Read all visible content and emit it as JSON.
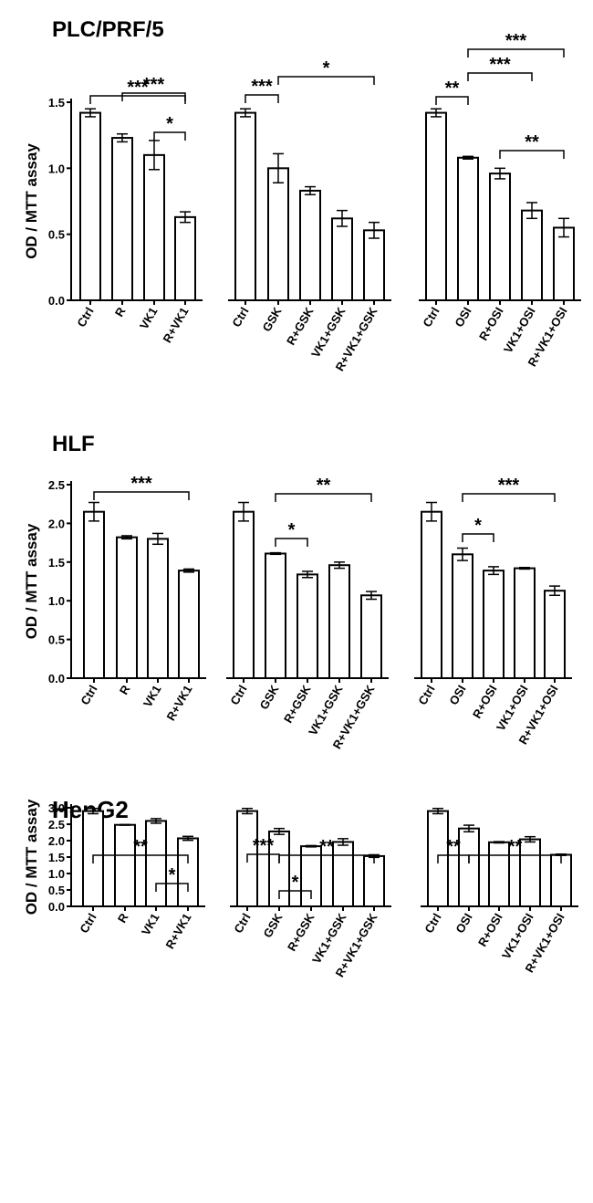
{
  "chart_data": [
    {
      "type": "bar",
      "title": "PLC/PRF/5",
      "ylabel": "OD / MTT assay",
      "ylim": [
        0,
        1.5
      ],
      "yticks": [
        "0.0",
        "0.5",
        "1.0",
        "1.5"
      ],
      "groups": [
        {
          "categories": [
            "Ctrl",
            "R",
            "VK1",
            "R+VK1"
          ],
          "values": [
            1.42,
            1.23,
            1.1,
            0.63
          ],
          "errors": [
            0.03,
            0.03,
            0.11,
            0.04
          ]
        },
        {
          "categories": [
            "Ctrl",
            "GSK",
            "R+GSK",
            "VK1+GSK",
            "R+VK1+GSK"
          ],
          "values": [
            1.42,
            1.0,
            0.83,
            0.62,
            0.53
          ],
          "errors": [
            0.03,
            0.11,
            0.03,
            0.06,
            0.06
          ]
        },
        {
          "categories": [
            "Ctrl",
            "OSI",
            "R+OSI",
            "VK1+OSI",
            "R+VK1+OSI"
          ],
          "values": [
            1.42,
            1.08,
            0.96,
            0.68,
            0.55
          ],
          "errors": [
            0.03,
            0.01,
            0.04,
            0.06,
            0.07
          ]
        }
      ],
      "significance": [
        {
          "from": [
            0,
            0
          ],
          "to": [
            0,
            3
          ],
          "label": "***"
        },
        {
          "from": [
            0,
            1
          ],
          "to": [
            0,
            3
          ],
          "label": "***"
        },
        {
          "from": [
            0,
            2
          ],
          "to": [
            0,
            3
          ],
          "label": "*"
        },
        {
          "from": [
            1,
            0
          ],
          "to": [
            1,
            1
          ],
          "label": "***"
        },
        {
          "from": [
            1,
            1
          ],
          "to": [
            1,
            4
          ],
          "label": "*"
        },
        {
          "from": [
            2,
            1
          ],
          "to": [
            2,
            4
          ],
          "label": "***"
        },
        {
          "from": [
            2,
            0
          ],
          "to": [
            2,
            1
          ],
          "label": "**"
        },
        {
          "from": [
            2,
            1
          ],
          "to": [
            2,
            3
          ],
          "label": "***"
        },
        {
          "from": [
            2,
            2
          ],
          "to": [
            2,
            4
          ],
          "label": "**"
        }
      ]
    },
    {
      "type": "bar",
      "title": "HLF",
      "ylabel": "OD / MTT assay",
      "ylim": [
        0,
        2.5
      ],
      "yticks": [
        "0.0",
        "0.5",
        "1.0",
        "1.5",
        "2.0",
        "2.5"
      ],
      "groups": [
        {
          "categories": [
            "Ctrl",
            "R",
            "VK1",
            "R+VK1"
          ],
          "values": [
            2.15,
            1.82,
            1.8,
            1.39
          ],
          "errors": [
            0.12,
            0.02,
            0.07,
            0.02
          ]
        },
        {
          "categories": [
            "Ctrl",
            "GSK",
            "R+GSK",
            "VK1+GSK",
            "R+VK1+GSK"
          ],
          "values": [
            2.15,
            1.61,
            1.34,
            1.46,
            1.07
          ],
          "errors": [
            0.12,
            0.01,
            0.04,
            0.04,
            0.05
          ]
        },
        {
          "categories": [
            "Ctrl",
            "OSI",
            "R+OSI",
            "VK1+OSI",
            "R+VK1+OSI"
          ],
          "values": [
            2.15,
            1.6,
            1.39,
            1.42,
            1.13
          ],
          "errors": [
            0.12,
            0.08,
            0.05,
            0.01,
            0.06
          ]
        }
      ],
      "significance": [
        {
          "from": [
            0,
            0
          ],
          "to": [
            0,
            3
          ],
          "label": "***"
        },
        {
          "from": [
            1,
            1
          ],
          "to": [
            1,
            4
          ],
          "label": "**"
        },
        {
          "from": [
            1,
            1
          ],
          "to": [
            1,
            2
          ],
          "label": "*"
        },
        {
          "from": [
            2,
            1
          ],
          "to": [
            2,
            4
          ],
          "label": "***"
        },
        {
          "from": [
            2,
            1
          ],
          "to": [
            2,
            2
          ],
          "label": "*"
        }
      ]
    },
    {
      "type": "bar",
      "title": "HepG2",
      "ylabel": "OD / MTT assay",
      "ylim": [
        0,
        3.0
      ],
      "yticks": [
        "0.0",
        "0.5",
        "1.0",
        "1.5",
        "2.0",
        "2.5",
        "3.0"
      ],
      "groups": [
        {
          "categories": [
            "Ctrl",
            "R",
            "VK1",
            "R+VK1"
          ],
          "values": [
            2.9,
            2.48,
            2.6,
            2.07
          ],
          "errors": [
            0.08,
            0.01,
            0.07,
            0.06
          ]
        },
        {
          "categories": [
            "Ctrl",
            "GSK",
            "R+GSK",
            "VK1+GSK",
            "R+VK1+GSK"
          ],
          "values": [
            2.9,
            2.28,
            1.83,
            1.96,
            1.53
          ],
          "errors": [
            0.08,
            0.09,
            0.02,
            0.1,
            0.04
          ]
        },
        {
          "categories": [
            "Ctrl",
            "OSI",
            "R+OSI",
            "VK1+OSI",
            "R+VK1+OSI"
          ],
          "values": [
            2.9,
            2.37,
            1.95,
            2.04,
            1.57
          ],
          "errors": [
            0.08,
            0.1,
            0.02,
            0.08,
            0.02
          ]
        }
      ],
      "significance": [
        {
          "from": [
            0,
            0
          ],
          "to": [
            0,
            3
          ],
          "label": "**"
        },
        {
          "from": [
            0,
            2
          ],
          "to": [
            0,
            3
          ],
          "label": "*"
        },
        {
          "from": [
            1,
            0
          ],
          "to": [
            1,
            1
          ],
          "label": "***"
        },
        {
          "from": [
            1,
            1
          ],
          "to": [
            1,
            4
          ],
          "label": "**"
        },
        {
          "from": [
            1,
            1
          ],
          "to": [
            1,
            2
          ],
          "label": "*"
        },
        {
          "from": [
            2,
            0
          ],
          "to": [
            2,
            1
          ],
          "label": "**"
        },
        {
          "from": [
            2,
            1
          ],
          "to": [
            2,
            4
          ],
          "label": "**"
        }
      ]
    }
  ]
}
